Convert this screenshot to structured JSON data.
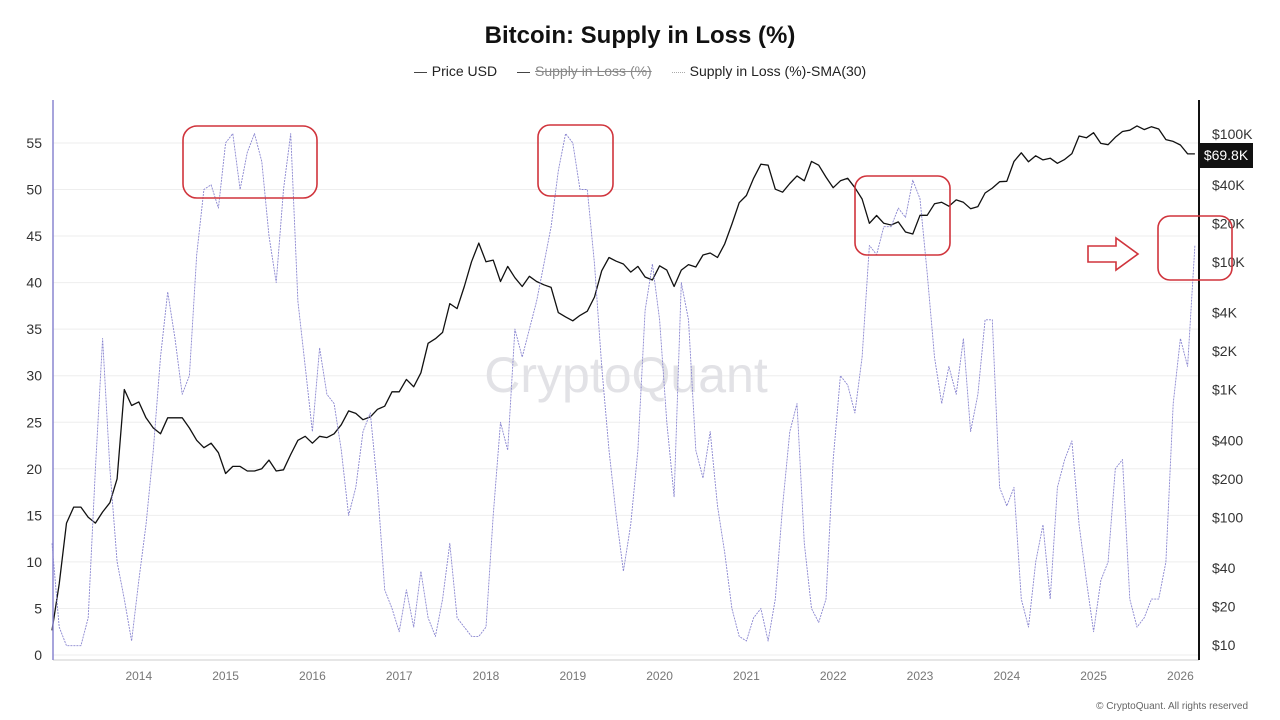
{
  "chart_data": {
    "type": "line",
    "title": "Bitcoin: Supply in Loss (%)",
    "legend": [
      {
        "label": "Price USD",
        "enabled": true,
        "color": "#111111"
      },
      {
        "label": "Supply in Loss (%)",
        "enabled": false,
        "color": "#444444"
      },
      {
        "label": "Supply in Loss (%)-SMA(30)",
        "enabled": true,
        "color": "#8a86d0"
      }
    ],
    "legend_position": "top-center",
    "grid": true,
    "x_ticks": [
      "2014",
      "2015",
      "2016",
      "2017",
      "2018",
      "2019",
      "2020",
      "2021",
      "2022",
      "2023",
      "2024",
      "2025",
      "2026"
    ],
    "x_range": [
      "2013-01",
      "2026-03"
    ],
    "y_left": {
      "ticks": [
        "0",
        "5",
        "10",
        "15",
        "20",
        "25",
        "30",
        "35",
        "40",
        "45",
        "50",
        "55"
      ],
      "range": [
        0,
        59
      ]
    },
    "y_right": {
      "scale": "log",
      "ticks": [
        "$10",
        "$20",
        "$40",
        "$100",
        "$200",
        "$400",
        "$1K",
        "$2K",
        "$4K",
        "$10K",
        "$20K",
        "$40K",
        "$100K"
      ],
      "range": [
        10,
        130000
      ]
    },
    "last_price_label": "$69.8K",
    "watermark": "CryptoQuant",
    "series": [
      {
        "name": "Price USD",
        "axis": "right",
        "start": "2013-01",
        "interval": "month",
        "values": [
          13,
          30,
          90,
          120,
          120,
          100,
          90,
          110,
          130,
          200,
          1000,
          750,
          800,
          600,
          500,
          450,
          600,
          600,
          600,
          500,
          400,
          350,
          380,
          320,
          220,
          250,
          250,
          230,
          230,
          240,
          280,
          230,
          235,
          310,
          400,
          430,
          380,
          430,
          420,
          450,
          530,
          680,
          650,
          580,
          610,
          700,
          740,
          960,
          960,
          1200,
          1050,
          1350,
          2300,
          2500,
          2800,
          4700,
          4300,
          6400,
          10000,
          14000,
          10000,
          10300,
          7000,
          9200,
          7500,
          6400,
          7700,
          7000,
          6600,
          6300,
          4000,
          3700,
          3450,
          3800,
          4100,
          5300,
          8500,
          10800,
          10100,
          9600,
          8300,
          9200,
          7600,
          7200,
          9300,
          8600,
          6400,
          8600,
          9500,
          9100,
          11300,
          11700,
          10800,
          13800,
          19700,
          29000,
          33000,
          45000,
          58000,
          57000,
          37000,
          35000,
          41000,
          47000,
          43000,
          61000,
          57000,
          46000,
          38000,
          43000,
          45000,
          38000,
          31000,
          20000,
          23000,
          20000,
          19400,
          20500,
          17100,
          16500,
          23100,
          23100,
          28400,
          29200,
          27200,
          30500,
          29200,
          26000,
          27000,
          34500,
          37700,
          42300,
          42600,
          61000,
          71300,
          60600,
          67500,
          62700,
          64600,
          59000,
          63300,
          70300,
          96400,
          93400,
          102400,
          84400,
          82500,
          94200,
          104600,
          107100,
          115800,
          108200,
          114000,
          109500,
          90400,
          87500,
          82000,
          70000,
          69800
        ]
      },
      {
        "name": "Supply in Loss (%)-SMA(30)",
        "axis": "left",
        "start": "2013-01",
        "interval": "month",
        "values": [
          12,
          3,
          1,
          1,
          1,
          4,
          20,
          34,
          20,
          10,
          6,
          1.5,
          8,
          14,
          22,
          32,
          39,
          34,
          28,
          30,
          43,
          50,
          50.5,
          48,
          55,
          56,
          50,
          54,
          56,
          53,
          45,
          40,
          50,
          56,
          38,
          31,
          24,
          33,
          28,
          27,
          22,
          15,
          18,
          24,
          26,
          18,
          7,
          5,
          2.5,
          7,
          3,
          9,
          4,
          2,
          6,
          12,
          4,
          3,
          2,
          2,
          3,
          15,
          25,
          22,
          35,
          32,
          35,
          38,
          42,
          46,
          52,
          56,
          55,
          50,
          50,
          42,
          31,
          22,
          15,
          9,
          14,
          22,
          37,
          42,
          36,
          25,
          17,
          40,
          36,
          22,
          19,
          24,
          16,
          11,
          5,
          2,
          1.5,
          4,
          5,
          1.5,
          6,
          16,
          24,
          27,
          12,
          5,
          3.5,
          6,
          21,
          30,
          29,
          26,
          32,
          44,
          43,
          46,
          46,
          48,
          47,
          51,
          49,
          41,
          32,
          27,
          31,
          28,
          34,
          24,
          28,
          36,
          36,
          18,
          16,
          18,
          6,
          3,
          10,
          14,
          6,
          18,
          21,
          23,
          14,
          8,
          2.5,
          8,
          10,
          20,
          21,
          6,
          3,
          4,
          6,
          6,
          10,
          27,
          34,
          31,
          44
        ]
      }
    ]
  },
  "footer": "© CryptoQuant. All rights reserved"
}
